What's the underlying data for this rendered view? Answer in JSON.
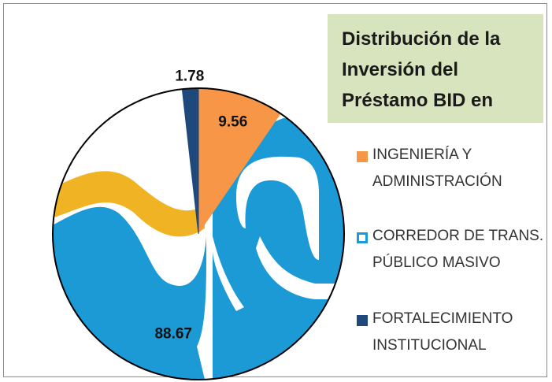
{
  "chart_data": {
    "type": "pie",
    "title": "Distribución de la Inversión del Préstamo BID en",
    "categories": [
      "INGENIERÍA Y ADMINISTRACIÓN",
      "CORREDOR DE TRANS. PÚBLICO MASIVO",
      "FORTALECIMIENTO INSTITUCIONAL"
    ],
    "values": [
      9.56,
      88.67,
      1.78
    ],
    "colors": [
      "#f79646",
      "#1b9ad6",
      "#1f497d"
    ]
  }
}
